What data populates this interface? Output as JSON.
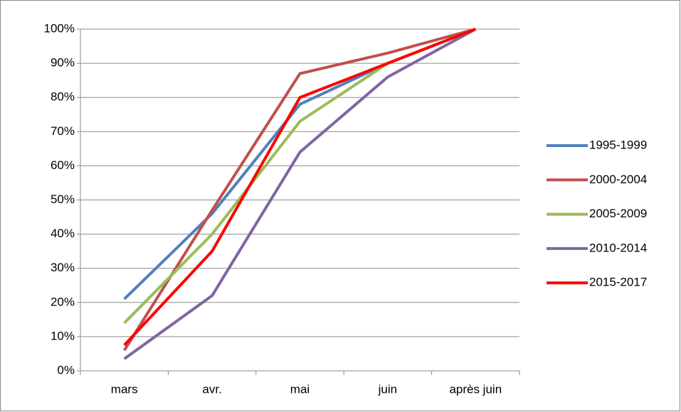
{
  "chart_data": {
    "type": "line",
    "categories": [
      "mars",
      "avr.",
      "mai",
      "juin",
      "après juin"
    ],
    "series": [
      {
        "name": "1995-1999",
        "color": "#4f81bd",
        "values": [
          21,
          46,
          78,
          90,
          100
        ]
      },
      {
        "name": "2000-2004",
        "color": "#c0504d",
        "values": [
          6,
          47,
          87,
          93,
          100
        ]
      },
      {
        "name": "2005-2009",
        "color": "#9bbb59",
        "values": [
          14,
          40,
          73,
          90,
          100
        ]
      },
      {
        "name": "2010-2014",
        "color": "#8064a2",
        "values": [
          3.5,
          22,
          64,
          86,
          100
        ]
      },
      {
        "name": "2015-2017",
        "color": "#ff0000",
        "values": [
          7.5,
          35,
          80,
          90,
          100
        ]
      }
    ],
    "ylim": [
      0,
      100
    ],
    "yticks": [
      {
        "value": 0,
        "label": "0%"
      },
      {
        "value": 10,
        "label": "10%"
      },
      {
        "value": 20,
        "label": "20%"
      },
      {
        "value": 30,
        "label": "30%"
      },
      {
        "value": 40,
        "label": "40%"
      },
      {
        "value": 50,
        "label": "50%"
      },
      {
        "value": 60,
        "label": "60%"
      },
      {
        "value": 70,
        "label": "70%"
      },
      {
        "value": 80,
        "label": "80%"
      },
      {
        "value": 90,
        "label": "90%"
      },
      {
        "value": 100,
        "label": "100%"
      }
    ],
    "grid": true,
    "legend": "right"
  }
}
